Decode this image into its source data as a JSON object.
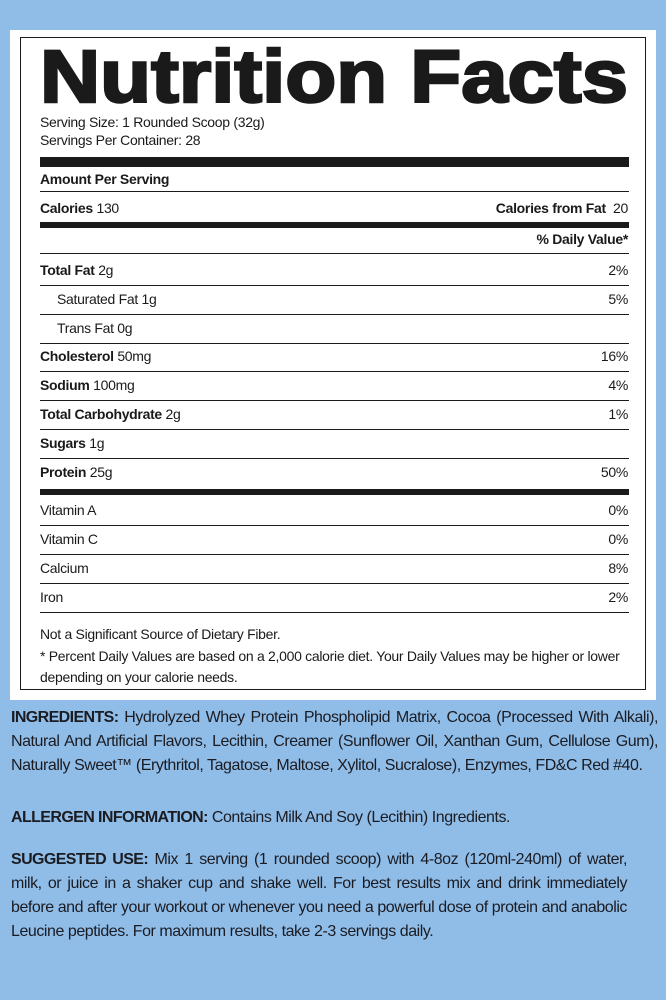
{
  "colors": {
    "background": "#8fbde8",
    "panel": "#ffffff",
    "ink": "#1a1a1a"
  },
  "label": {
    "title": "Nutrition Facts",
    "serving_size": "Serving Size: 1 Rounded Scoop (32g)",
    "servings_per_container": "Servings Per Container: 28",
    "amount_per_serving": "Amount Per Serving",
    "calories_label": "Calories",
    "calories_value": "130",
    "calories_fat_label": "Calories from Fat",
    "calories_fat_value": "20",
    "daily_value_header": "% Daily Value*",
    "nutrients": [
      {
        "name": "Total Fat",
        "amount": "2g",
        "dv": "2%",
        "bold": true,
        "indent": false
      },
      {
        "name": "Saturated Fat",
        "amount": "1g",
        "dv": "5%",
        "bold": false,
        "indent": true
      },
      {
        "name": "Trans Fat",
        "amount": "0g",
        "dv": "",
        "bold": false,
        "indent": true
      },
      {
        "name": "Cholesterol",
        "amount": "50mg",
        "dv": "16%",
        "bold": true,
        "indent": false
      },
      {
        "name": "Sodium",
        "amount": "100mg",
        "dv": "4%",
        "bold": true,
        "indent": false
      },
      {
        "name": "Total Carbohydrate",
        "amount": "2g",
        "dv": "1%",
        "bold": true,
        "indent": false
      },
      {
        "name": "Sugars",
        "amount": "1g",
        "dv": "",
        "bold": true,
        "indent": false
      },
      {
        "name": "Protein",
        "amount": "25g",
        "dv": "50%",
        "bold": true,
        "indent": false
      }
    ],
    "vitamins": [
      {
        "name": "Vitamin A",
        "dv": "0%"
      },
      {
        "name": "Vitamin C",
        "dv": "0%"
      },
      {
        "name": "Calcium",
        "dv": "8%"
      },
      {
        "name": "Iron",
        "dv": "2%"
      }
    ],
    "footnote_1": "Not a Significant Source of Dietary Fiber.",
    "footnote_2": "* Percent Daily Values are based on a 2,000 calorie diet. Your Daily Values may be higher or lower depending on your calorie needs."
  },
  "ingredients": {
    "heading": "INGREDIENTS:",
    "text": " Hydrolyzed Whey Protein Phospholipid Matrix, Cocoa (Processed With Alkali), Natural And Artificial Flavors, Lecithin, Creamer (Sunflower Oil, Xanthan Gum, Cellulose Gum), Naturally Sweet™ (Erythritol, Tagatose, Maltose, Xylitol, Sucralose), Enzymes, FD&C Red #40."
  },
  "allergen": {
    "heading": "ALLERGEN INFORMATION:",
    "text": " Contains Milk And Soy (Lecithin) Ingredients."
  },
  "suggested_use": {
    "heading": "SUGGESTED USE:",
    "text": " Mix 1 serving (1 rounded scoop) with 4-8oz (120ml-240ml) of water, milk, or juice in a shaker cup and shake well. For best results mix and drink immediately before and after your workout or whenever you need a powerful dose of protein and anabolic Leucine peptides. For maximum results, take 2-3 servings daily."
  }
}
